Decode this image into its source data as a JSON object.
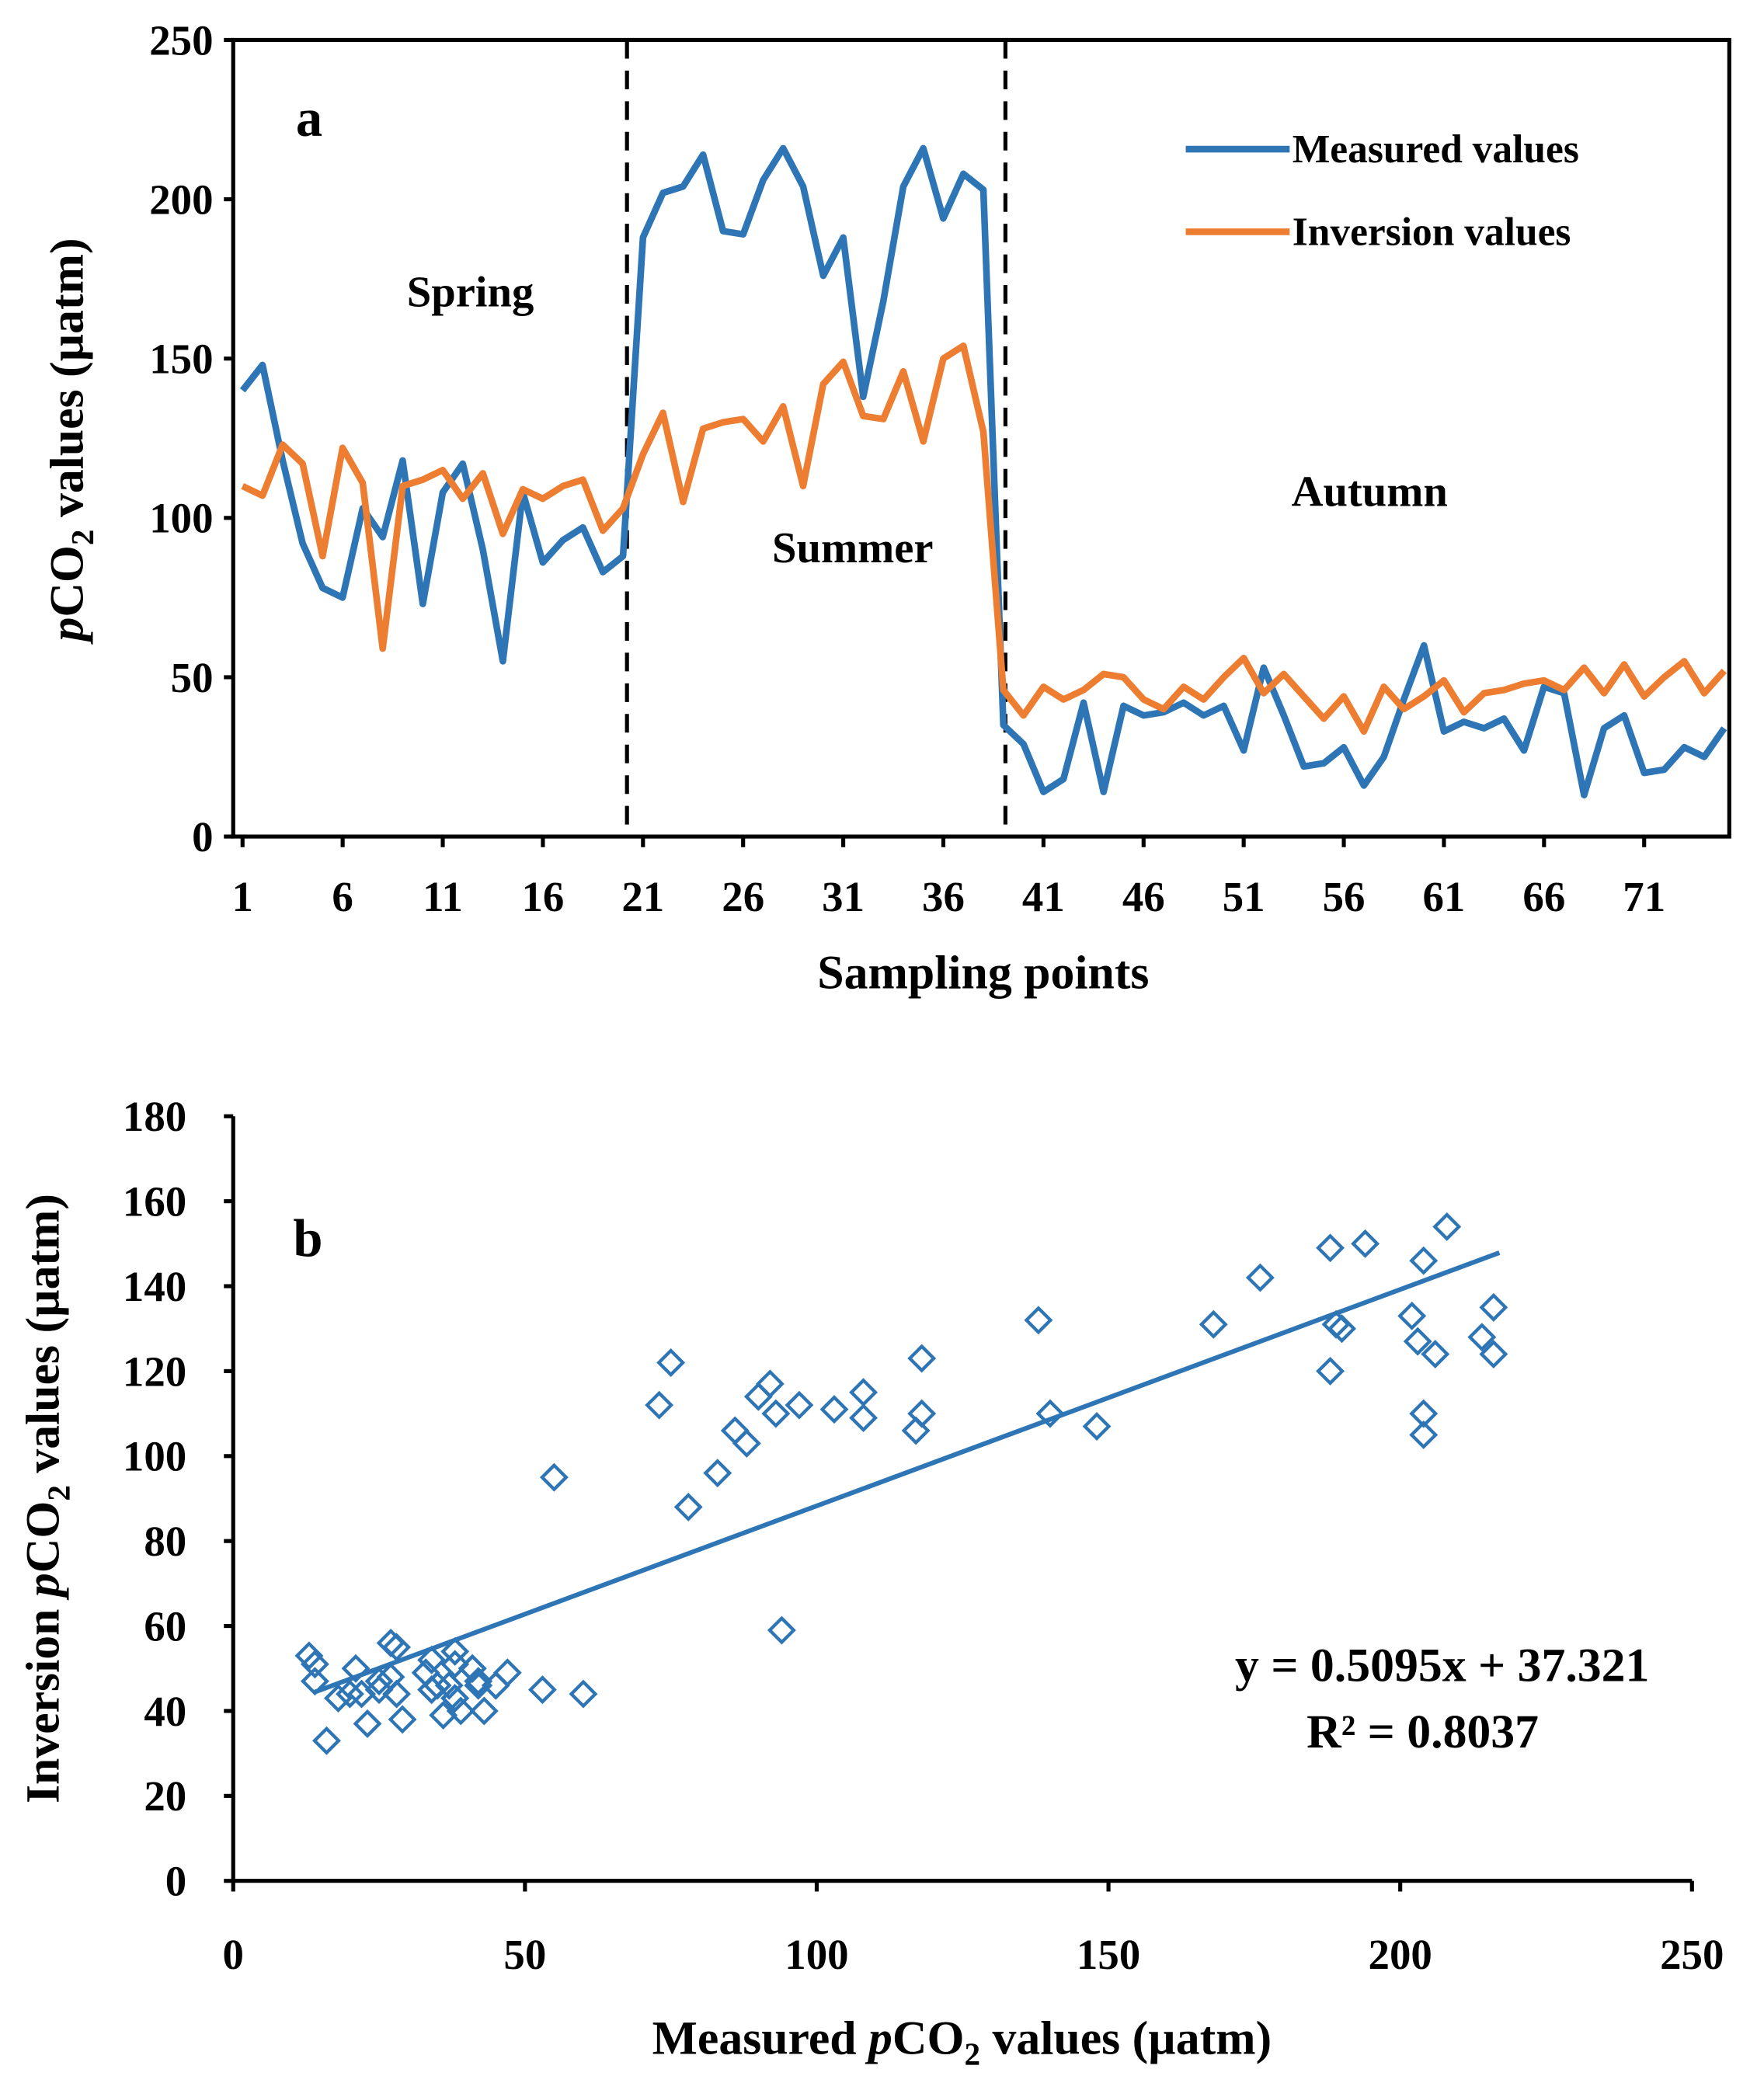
{
  "chart_data": [
    {
      "type": "line",
      "panel_label": "a",
      "xlabel": "Sampling points",
      "ylabel_parts": {
        "italic": "p",
        "main": "CO",
        "sub": "2",
        "rest": " values (µatm)"
      },
      "ylim": [
        0,
        250
      ],
      "yticks": [
        "0",
        "50",
        "100",
        "150",
        "200",
        "250"
      ],
      "yticks_values": [
        0,
        50,
        100,
        150,
        200,
        250
      ],
      "xlim": [
        1,
        75
      ],
      "xticks": [
        "1",
        "6",
        "11",
        "16",
        "21",
        "26",
        "31",
        "36",
        "41",
        "46",
        "51",
        "56",
        "61",
        "66",
        "71"
      ],
      "xticks_values": [
        1,
        6,
        11,
        16,
        21,
        26,
        31,
        36,
        41,
        46,
        51,
        56,
        61,
        66,
        71
      ],
      "season_dividers": [
        20.2,
        39.1
      ],
      "season_labels": [
        "Spring",
        "Summer",
        "Autumn"
      ],
      "legend_position": "top-right",
      "series": [
        {
          "name": "Measured values",
          "color": "#2e75b6",
          "values": [
            140,
            148,
            118,
            92,
            78,
            75,
            103,
            94,
            118,
            73,
            108,
            117,
            90,
            55,
            108,
            86,
            93,
            97,
            83,
            88,
            188,
            202,
            204,
            214,
            190,
            189,
            206,
            216,
            204,
            176,
            188,
            138,
            168,
            204,
            216,
            194,
            208,
            203,
            35,
            29,
            14,
            18,
            42,
            14,
            41,
            38,
            39,
            42,
            38,
            41,
            27,
            53,
            38,
            22,
            23,
            28,
            16,
            25,
            43,
            60,
            33,
            36,
            34,
            37,
            27,
            47,
            45,
            13,
            34,
            38,
            20,
            21,
            28,
            25,
            34
          ]
        },
        {
          "name": "Inversion values",
          "color": "#ed7d31",
          "values": [
            110,
            107,
            123,
            117,
            88,
            122,
            111,
            59,
            110,
            112,
            115,
            106,
            114,
            95,
            109,
            106,
            110,
            112,
            96,
            103,
            120,
            133,
            105,
            128,
            130,
            131,
            124,
            135,
            110,
            142,
            149,
            132,
            131,
            146,
            124,
            150,
            154,
            127,
            46,
            38,
            47,
            43,
            46,
            51,
            50,
            43,
            40,
            47,
            43,
            50,
            56,
            45,
            51,
            44,
            37,
            44,
            33,
            47,
            40,
            44,
            49,
            39,
            45,
            46,
            48,
            49,
            46,
            53,
            45,
            54,
            44,
            50,
            55,
            45,
            52
          ]
        }
      ]
    },
    {
      "type": "scatter",
      "panel_label": "b",
      "xlabel_parts": {
        "pre": "Measured ",
        "italic": "p",
        "main": "CO",
        "sub": "2",
        "rest": " values (µatm)"
      },
      "ylabel_parts": {
        "pre": "Inversion ",
        "italic": "p",
        "main": "CO",
        "sub": "2",
        "rest": " values (µatm)"
      },
      "xlim": [
        0,
        250
      ],
      "ylim": [
        0,
        180
      ],
      "xticks": [
        "0",
        "50",
        "100",
        "150",
        "200",
        "250"
      ],
      "xticks_values": [
        0,
        50,
        100,
        150,
        200,
        250
      ],
      "yticks": [
        "0",
        "20",
        "40",
        "60",
        "80",
        "100",
        "120",
        "140",
        "160",
        "180"
      ],
      "yticks_values": [
        0,
        20,
        40,
        60,
        80,
        100,
        120,
        140,
        160,
        180
      ],
      "marker_color": "#2e75b6",
      "trendline": {
        "slope": 0.5095,
        "intercept": 37.321,
        "x_range": [
          14,
          217
        ]
      },
      "equation": "y = 0.5095x + 37.321",
      "r_squared": "R² = 0.8037"
    }
  ]
}
